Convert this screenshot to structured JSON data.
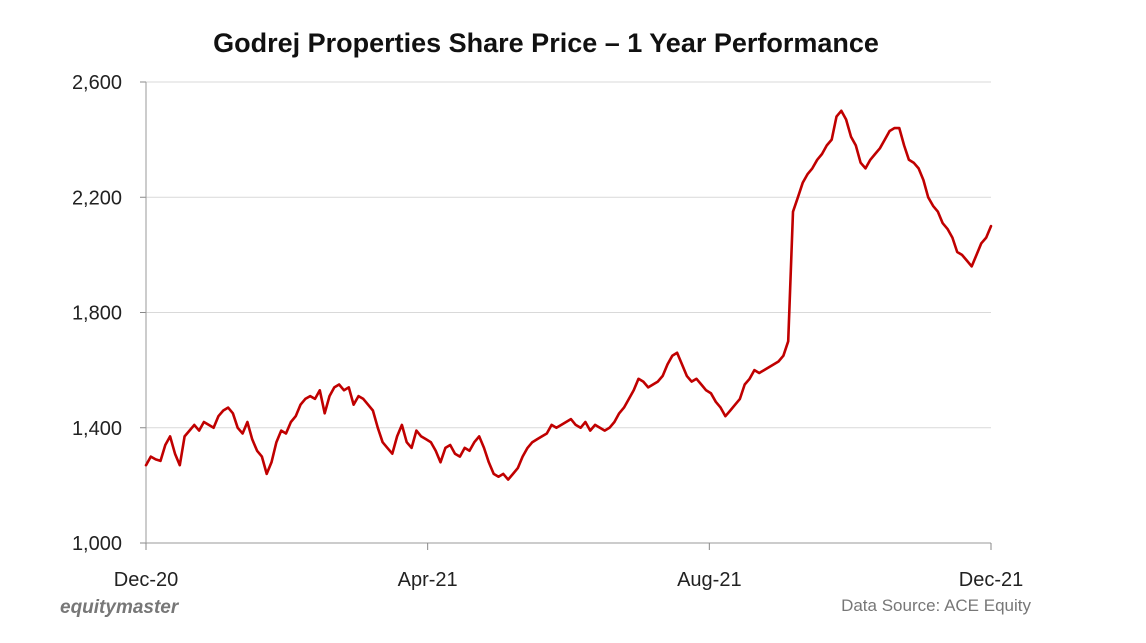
{
  "chart_data": {
    "type": "line",
    "title": "Godrej Properties Share Price – 1 Year Performance",
    "xlabel": "",
    "ylabel": "",
    "ylim": [
      1000,
      2600
    ],
    "yticks": [
      1000,
      1400,
      1800,
      2200,
      2600
    ],
    "ytick_labels": [
      "1,000",
      "1,400",
      "1,800",
      "2,200",
      "2,600"
    ],
    "xticks": [
      "Dec-20",
      "Apr-21",
      "Aug-21",
      "Dec-21"
    ],
    "grid": true,
    "series": [
      {
        "name": "Godrej Properties",
        "color": "#c00000",
        "values": [
          1270,
          1300,
          1290,
          1285,
          1340,
          1370,
          1310,
          1270,
          1370,
          1390,
          1410,
          1390,
          1420,
          1410,
          1400,
          1440,
          1460,
          1470,
          1450,
          1400,
          1380,
          1420,
          1360,
          1320,
          1300,
          1240,
          1280,
          1350,
          1390,
          1380,
          1420,
          1440,
          1480,
          1500,
          1510,
          1500,
          1530,
          1450,
          1510,
          1540,
          1550,
          1530,
          1540,
          1480,
          1510,
          1500,
          1480,
          1460,
          1400,
          1350,
          1330,
          1310,
          1370,
          1410,
          1350,
          1330,
          1390,
          1370,
          1360,
          1350,
          1320,
          1280,
          1330,
          1340,
          1310,
          1300,
          1330,
          1320,
          1350,
          1370,
          1330,
          1280,
          1240,
          1230,
          1240,
          1220,
          1240,
          1260,
          1300,
          1330,
          1350,
          1360,
          1370,
          1380,
          1410,
          1400,
          1410,
          1420,
          1430,
          1410,
          1400,
          1420,
          1390,
          1410,
          1400,
          1390,
          1400,
          1420,
          1450,
          1470,
          1500,
          1530,
          1570,
          1560,
          1540,
          1550,
          1560,
          1580,
          1620,
          1650,
          1660,
          1620,
          1580,
          1560,
          1570,
          1550,
          1530,
          1520,
          1490,
          1470,
          1440,
          1460,
          1480,
          1500,
          1550,
          1570,
          1600,
          1590,
          1600,
          1610,
          1620,
          1630,
          1650,
          1700,
          2150,
          2200,
          2250,
          2280,
          2300,
          2330,
          2350,
          2380,
          2400,
          2480,
          2500,
          2470,
          2410,
          2380,
          2320,
          2300,
          2330,
          2350,
          2370,
          2400,
          2430,
          2440,
          2440,
          2380,
          2330,
          2320,
          2300,
          2260,
          2200,
          2170,
          2150,
          2110,
          2090,
          2060,
          2010,
          2000,
          1980,
          1960,
          2000,
          2040,
          2060,
          2100
        ]
      }
    ]
  },
  "footer": {
    "brand": "equitymaster",
    "source": "Data Source: ACE Equity"
  }
}
